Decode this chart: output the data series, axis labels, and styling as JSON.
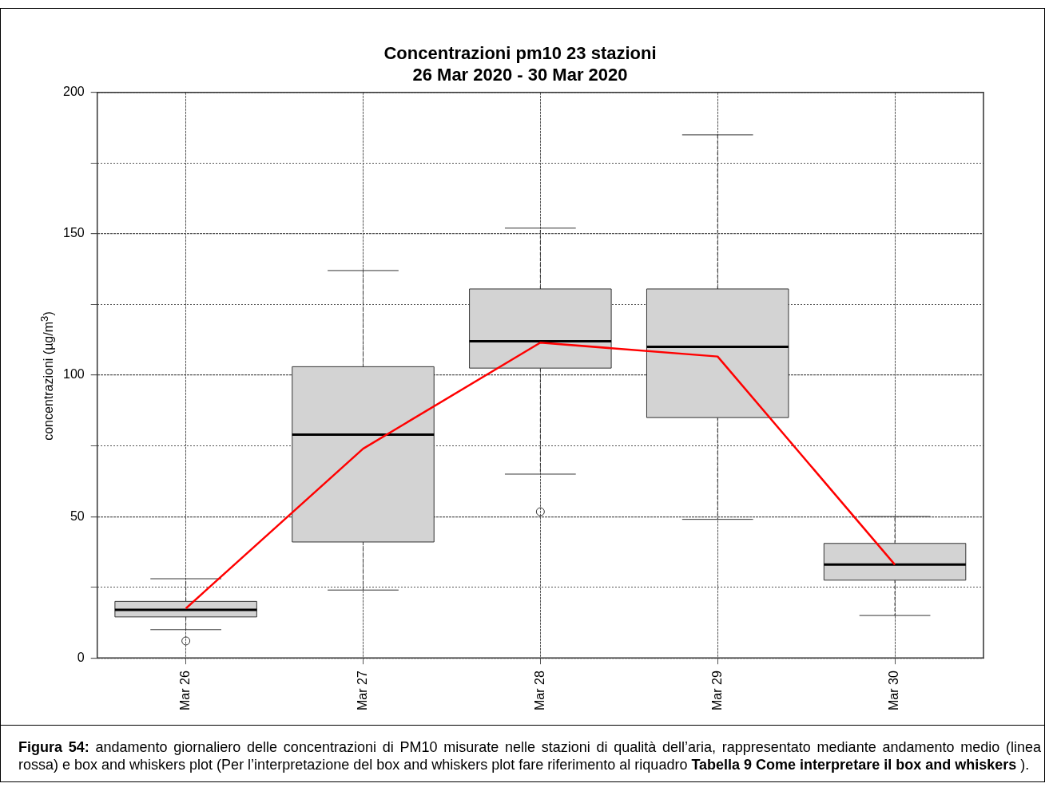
{
  "chart_data": {
    "type": "box",
    "title": "Concentrazioni pm10 23 stazioni",
    "subtitle": "26 Mar 2020 - 30 Mar 2020",
    "ylabel": "concentrazioni (µg/m$^{3}$)",
    "categories": [
      "Mar 26",
      "Mar 27",
      "Mar 28",
      "Mar 29",
      "Mar 30"
    ],
    "series": [
      {
        "color": "#d3d3d3",
        "boxes": [
          {
            "low": 10,
            "q1": 14.5,
            "median": 17,
            "q3": 20,
            "high": 28,
            "outliers": [
              6
            ]
          },
          {
            "low": 24,
            "q1": 41,
            "median": 79,
            "q3": 103,
            "high": 137
          },
          {
            "low": 65,
            "q1": 102.5,
            "median": 112,
            "q3": 130.5,
            "high": 152,
            "outliers": [
              51.7
            ]
          },
          {
            "low": 49,
            "q1": 85,
            "median": 110,
            "q3": 130.5,
            "high": 185
          },
          {
            "low": 15,
            "q1": 27.5,
            "median": 33,
            "q3": 40.5,
            "high": 50
          }
        ]
      },
      {
        "type": "line",
        "color": "#ff0000",
        "values": [
          17.5,
          74,
          111.5,
          106.6,
          33
        ]
      }
    ],
    "ylim": [
      0,
      200
    ],
    "yticks": [
      0,
      {
        "value": 25,
        "label": null
      },
      50,
      {
        "value": 75,
        "label": null
      },
      100,
      {
        "value": 125,
        "label": null
      },
      150,
      {
        "value": 175,
        "label": null
      },
      200
    ],
    "grid": true,
    "legend": false,
    "marker": "none",
    "annotations": [
      "Figura 54:",
      " andamento giornaliero delle concentrazioni di PM10 misurate nelle stazioni di qualità dell’aria, rappresentato mediante andamento medio (linea rossa) e box and whiskers plot (Per l’interpretazione del box and whiskers plot fare riferimento al riquadro ",
      "Tabella 9 Come interpretare il box and whiskers",
      " )."
    ]
  }
}
